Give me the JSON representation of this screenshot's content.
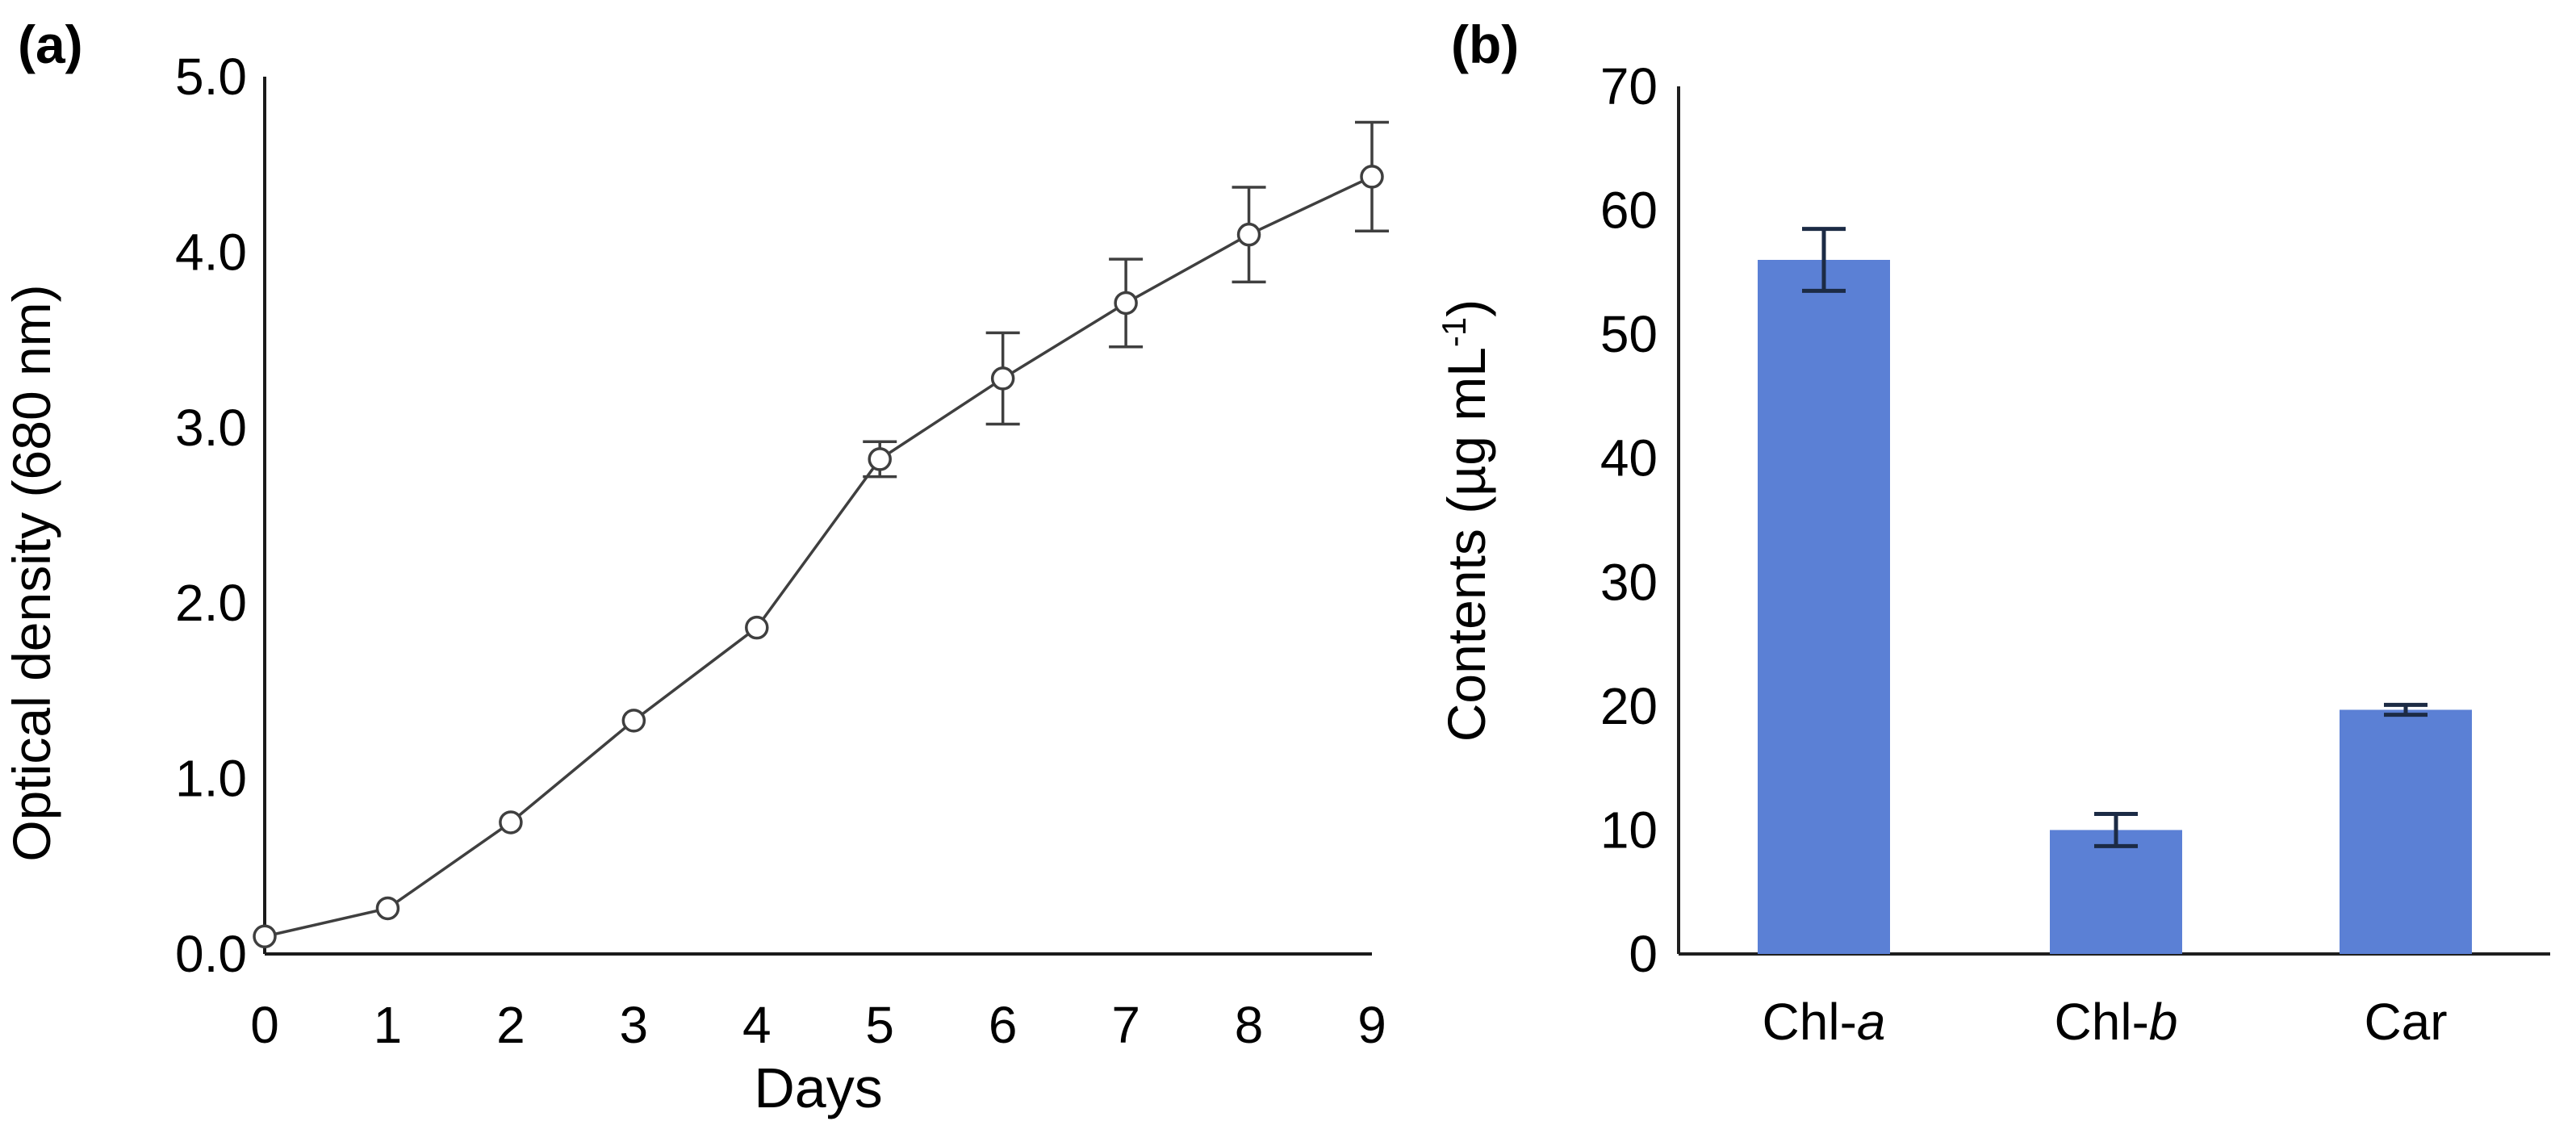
{
  "figure": {
    "background": "#ffffff",
    "text_color": "#000000"
  },
  "chart_data": [
    {
      "id": "growth-curve",
      "type": "line",
      "panel_label": "(a)",
      "xlabel": "Days",
      "ylabel": "Optical density (680 nm)",
      "x": [
        0,
        1,
        2,
        3,
        4,
        5,
        6,
        7,
        8,
        9
      ],
      "y": [
        0.1,
        0.26,
        0.75,
        1.33,
        1.86,
        2.82,
        3.28,
        3.71,
        4.1,
        4.43
      ],
      "yerr": [
        0,
        0,
        0,
        0,
        0,
        0.1,
        0.26,
        0.25,
        0.27,
        0.31
      ],
      "xlim": [
        0,
        9
      ],
      "ylim": [
        0,
        5
      ],
      "xtick_labels": [
        "0",
        "1",
        "2",
        "3",
        "4",
        "5",
        "6",
        "7",
        "8",
        "9"
      ],
      "ytick_labels": [
        "0.0",
        "1.0",
        "2.0",
        "3.0",
        "4.0",
        "5.0"
      ],
      "grid": false,
      "legend": false,
      "marker": "open-circle",
      "line_color": "#3F3F3F",
      "marker_fill": "#FFFFFF",
      "axis_color": "#1A1A1A"
    },
    {
      "id": "pigment-contents",
      "type": "bar",
      "panel_label": "(b)",
      "ylabel_parts": {
        "main": "Contents (µg mL",
        "sup": "-1",
        "close": ")"
      },
      "ylabel_plain": "Contents (µg mL⁻¹)",
      "categories": [
        {
          "text": "Chl-",
          "italic": "a"
        },
        {
          "text": "Chl-",
          "italic": "b"
        },
        {
          "text": "Car",
          "italic": ""
        }
      ],
      "values": [
        56,
        10,
        19.7
      ],
      "yerr": [
        2.5,
        1.3,
        0.4
      ],
      "ylim": [
        0,
        70
      ],
      "ytick_step": 10,
      "ytick_labels": [
        "0",
        "10",
        "20",
        "30",
        "40",
        "50",
        "60",
        "70"
      ],
      "grid": false,
      "legend": false,
      "bar_color": "#5B80D5",
      "error_bar_color": "#1C2B45",
      "axis_color": "#1F1F1F"
    }
  ]
}
